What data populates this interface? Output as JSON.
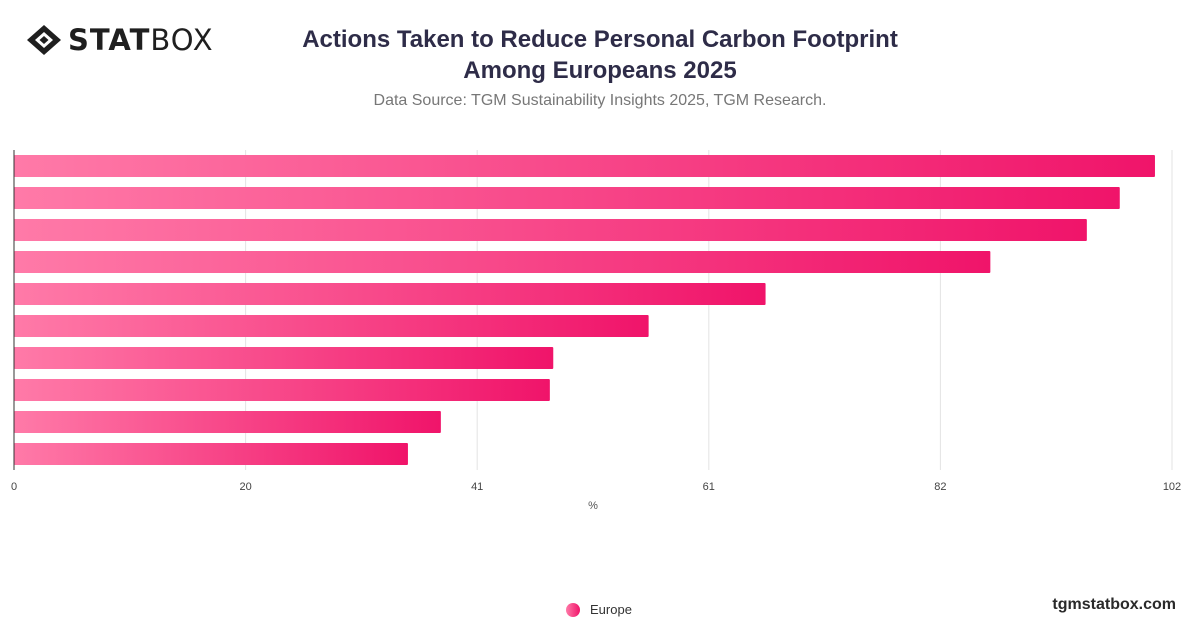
{
  "brand": {
    "logo_bold": "STAT",
    "logo_light": "BOX",
    "site": "tgmstatbox.com"
  },
  "title_line1": "Actions Taken to Reduce Personal Carbon Footprint",
  "title_line2": "Among Europeans  2025",
  "subtitle": "Data Source: TGM Sustainability Insights 2025, TGM Research.",
  "colors": {
    "bar_start": "#ff7aa8",
    "bar_end": "#f0146a",
    "grid": "#e3e3e3",
    "axis": "#333333"
  },
  "chart_data": {
    "type": "bar",
    "orientation": "horizontal",
    "xlabel": "%",
    "xlim": [
      0,
      102
    ],
    "ticks": [
      {
        "value": 0,
        "label": "0"
      },
      {
        "value": 20.4,
        "label": "20"
      },
      {
        "value": 40.8,
        "label": "41"
      },
      {
        "value": 61.2,
        "label": "61"
      },
      {
        "value": 81.6,
        "label": "82"
      },
      {
        "value": 102,
        "label": "102"
      }
    ],
    "grid": true,
    "legend_position": "bottom",
    "series": [
      {
        "name": "Europe",
        "values": [
          100.5,
          97.4,
          94.5,
          86.0,
          66.2,
          55.9,
          47.5,
          47.2,
          37.6,
          34.7
        ]
      }
    ]
  }
}
